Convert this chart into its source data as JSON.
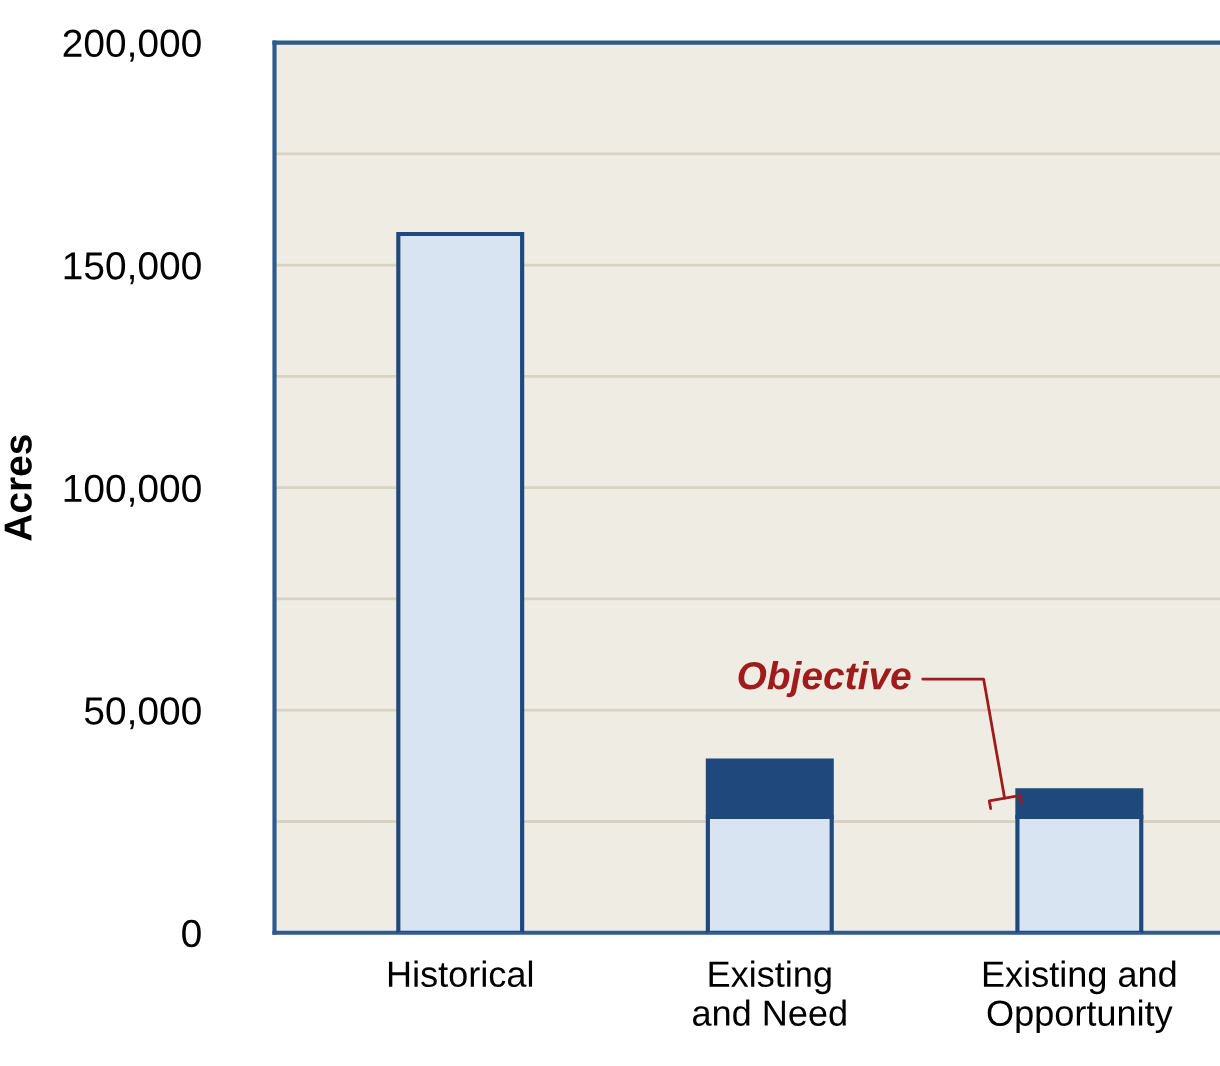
{
  "chart_data": {
    "type": "bar",
    "stacked": true,
    "ylabel": "Acres",
    "categories": [
      "Historical",
      "Existing\nand Need",
      "Existing and\nOpportunity"
    ],
    "series": [
      {
        "color": "#d9e4f2",
        "values": [
          157000,
          26000,
          26000
        ]
      },
      {
        "color": "#1f497d",
        "values": [
          null,
          12700,
          6000
        ]
      }
    ],
    "ylim": [
      0,
      200000
    ],
    "yticks": [
      0,
      {
        "value": 25000,
        "label": null
      },
      {
        "value": 50000,
        "label": "50,000"
      },
      {
        "value": 75000,
        "label": null
      },
      {
        "value": 100000,
        "label": "100,000"
      },
      {
        "value": 125000,
        "label": null
      },
      {
        "value": 150000,
        "label": "150,000"
      },
      {
        "value": 175000,
        "label": null
      },
      {
        "value": 200000,
        "label": "200,000"
      }
    ],
    "grid": "y",
    "annotations": [
      "Objective"
    ]
  }
}
